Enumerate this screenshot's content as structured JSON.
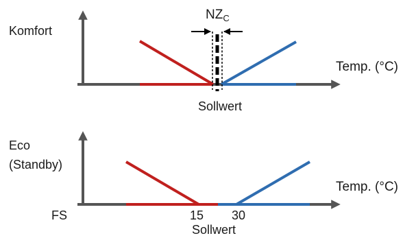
{
  "colors": {
    "axis": "#555555",
    "heating": "#c0201e",
    "cooling": "#2f6db0",
    "text": "#1a1a1a"
  },
  "top_panel": {
    "mode_label": "Komfort",
    "x_axis_label": "Temp. (°C)",
    "setpoint_label": "Sollwert",
    "neutral_zone_label": "NZ",
    "neutral_zone_subscript": "C"
  },
  "bottom_panel": {
    "mode_label_line1": "Eco",
    "mode_label_line2": "(Standby)",
    "x_axis_label": "Temp. (°C)",
    "baseline_label": "FS",
    "heating_setpoint_value": "15",
    "cooling_setpoint_value": "30",
    "setpoint_label": "Sollwert"
  }
}
